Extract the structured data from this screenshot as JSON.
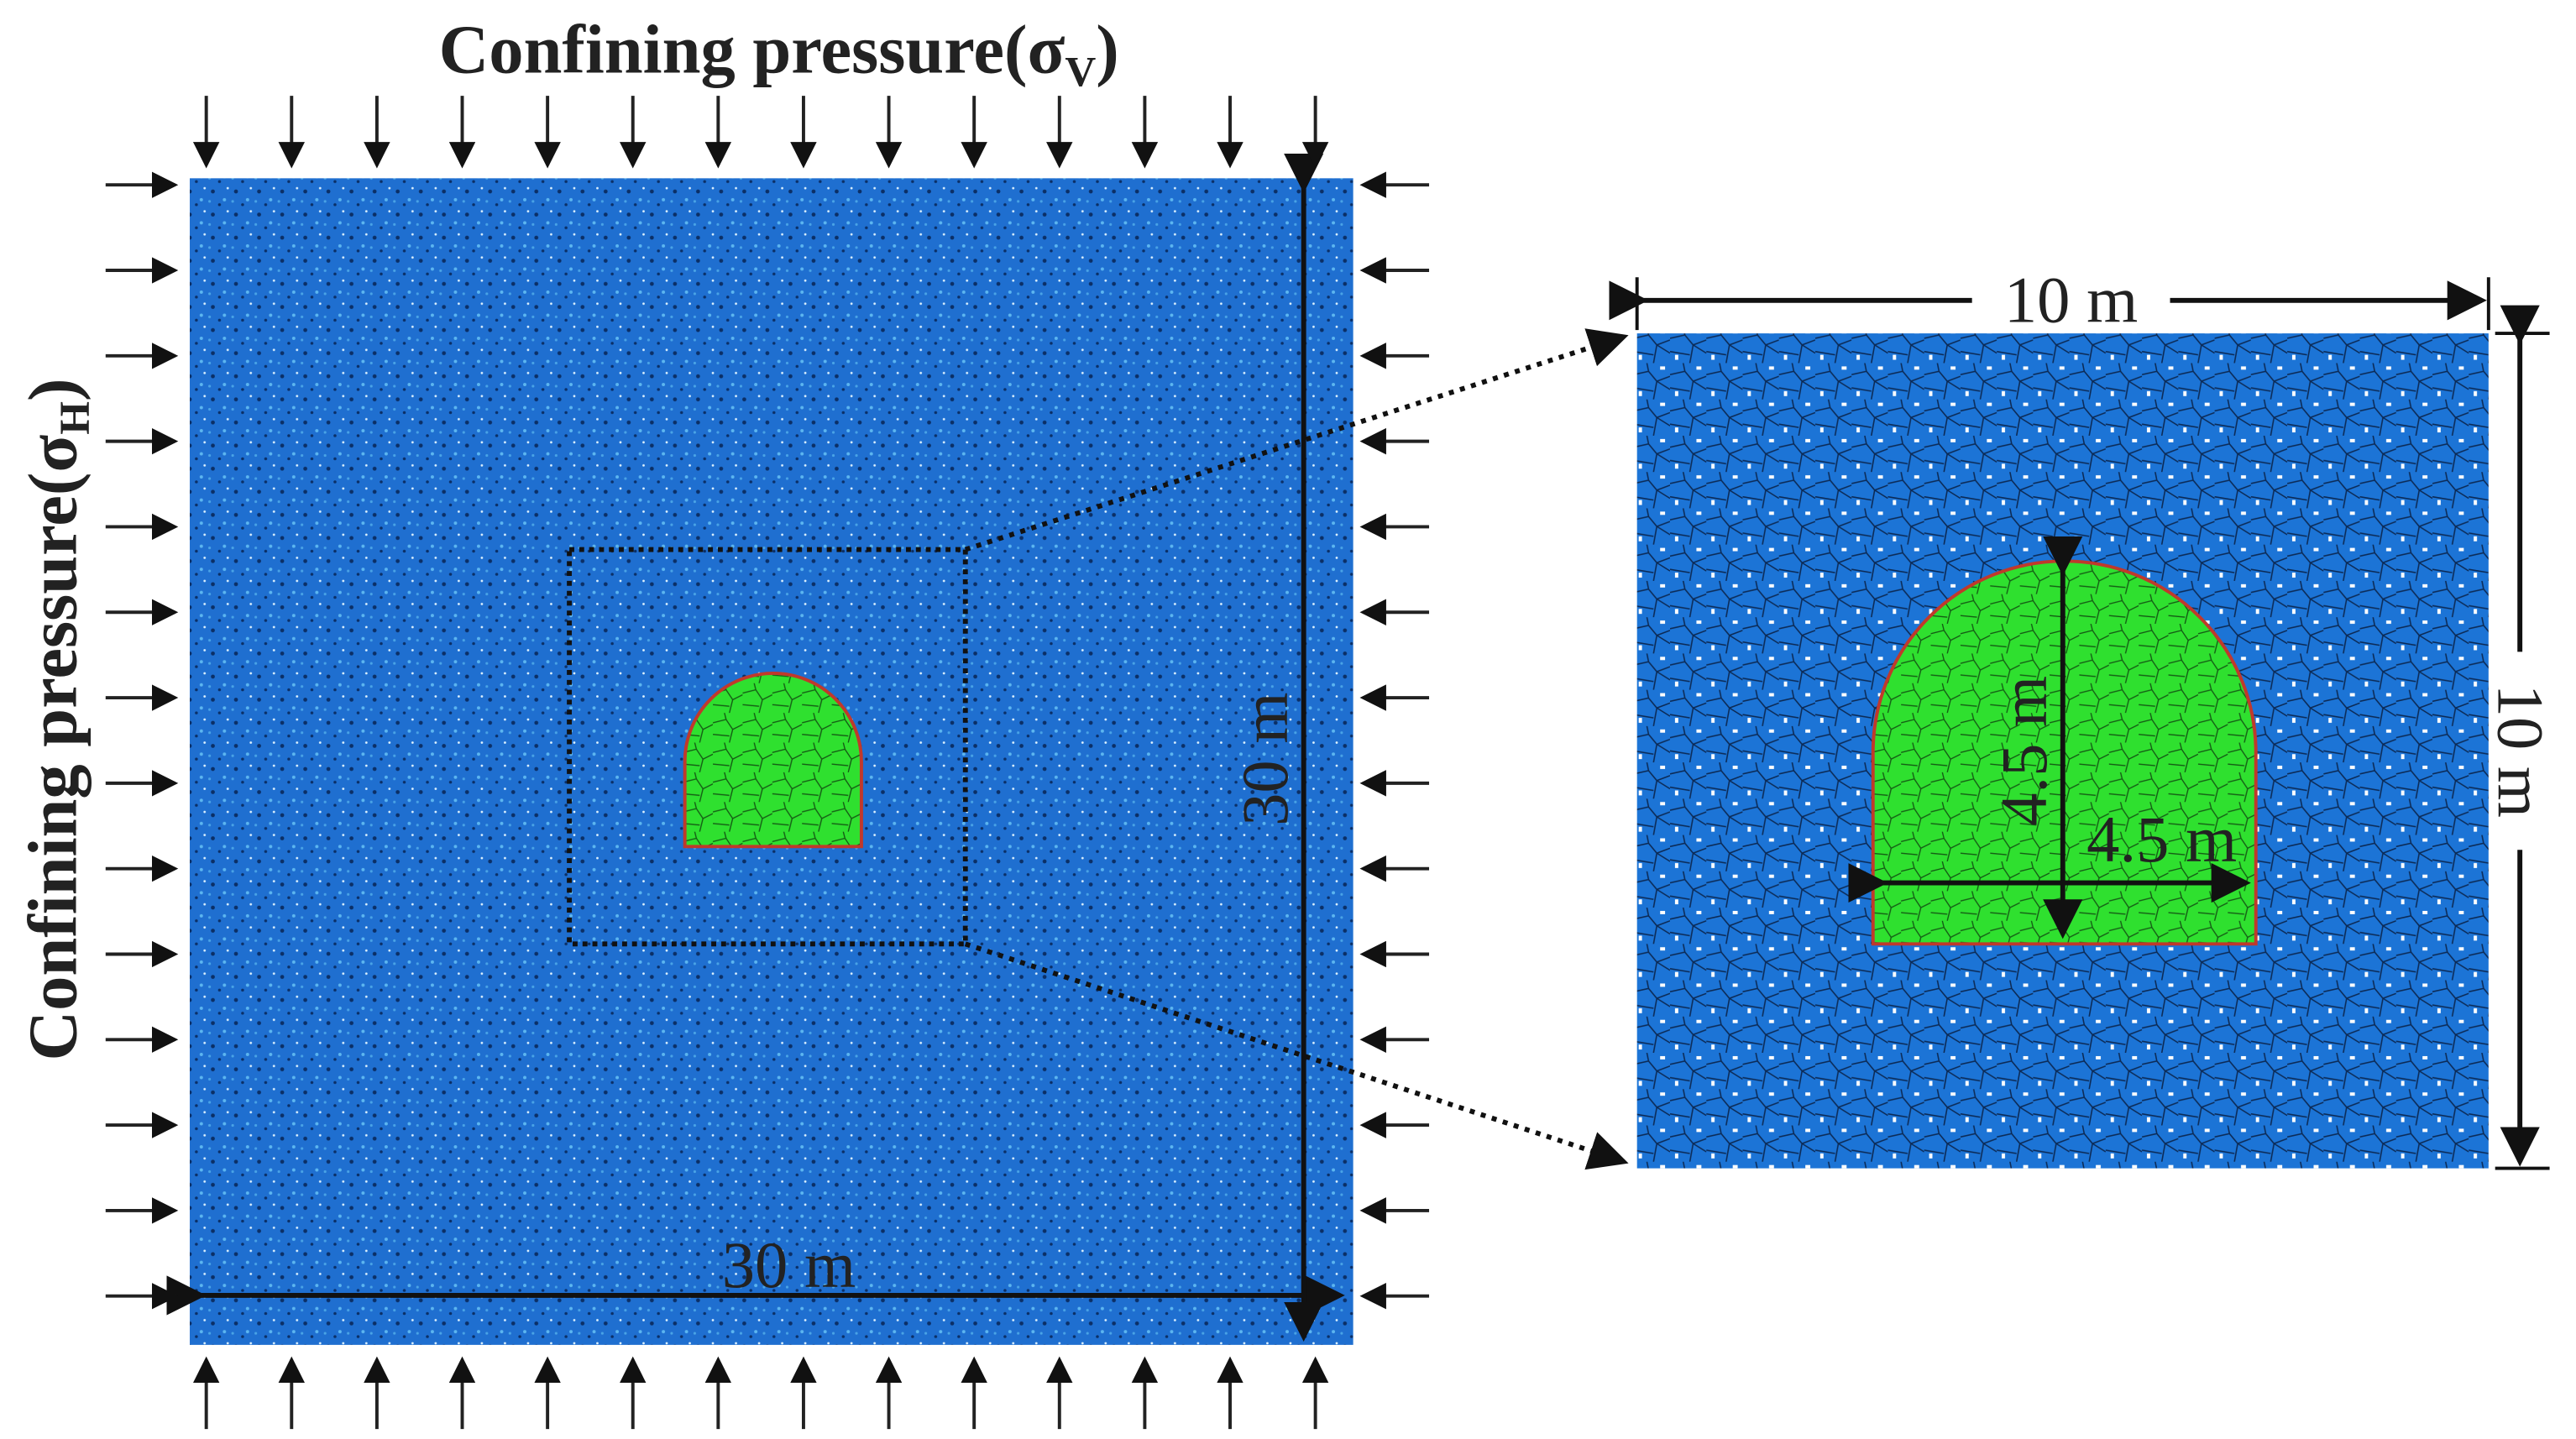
{
  "vertical_pressure": {
    "text": "Confining pressure(σ",
    "subscript": "V",
    "close": ")"
  },
  "horizontal_pressure": {
    "text": "Confining pressure(σ",
    "subscript": "H",
    "close": ")"
  },
  "model": {
    "width_label": "30 m",
    "height_label": "30 m"
  },
  "zoom": {
    "width_label": "10 m",
    "height_label": "10 m",
    "tunnel_height_label": "4.5 m",
    "tunnel_width_label": "4.5 m"
  }
}
